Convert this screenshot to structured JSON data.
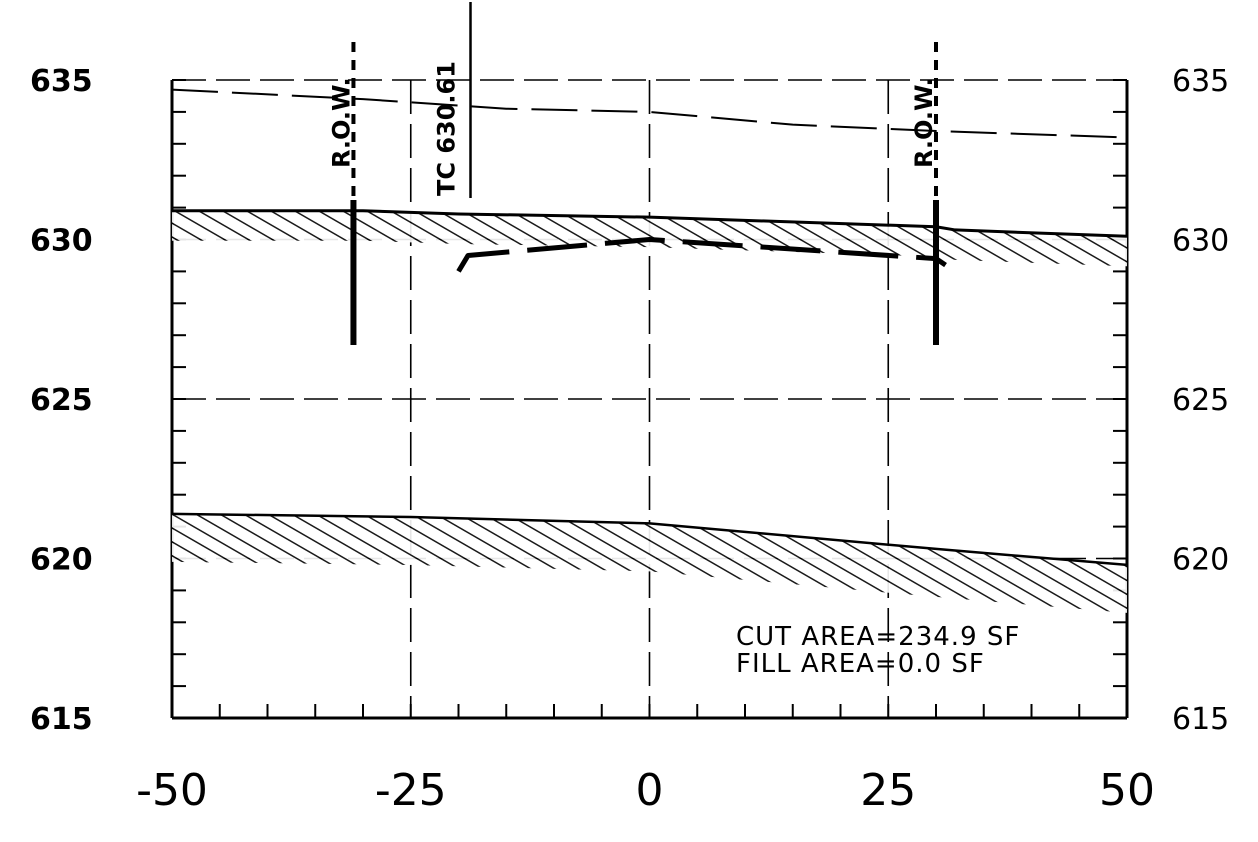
{
  "chart_data": {
    "type": "line",
    "title": "",
    "xlabel": "",
    "ylabel": "",
    "x_ticks": [
      -50,
      -25,
      0,
      25,
      50
    ],
    "y_ticks": [
      615,
      620,
      625,
      630,
      635
    ],
    "xlim": [
      -50,
      50
    ],
    "ylim": [
      615,
      635
    ],
    "grid": true,
    "series": [
      {
        "x": [
          -50,
          -30,
          -15,
          0,
          15,
          30,
          50
        ],
        "y": [
          634.7,
          634.4,
          634.1,
          634.0,
          633.6,
          633.4,
          633.2
        ]
      },
      {
        "x": [
          -50,
          -30,
          -20,
          0,
          30,
          32,
          50
        ],
        "y": [
          630.9,
          630.9,
          630.8,
          630.7,
          630.4,
          630.3,
          630.1
        ]
      },
      {
        "x": [
          -20,
          -19,
          0,
          30,
          31
        ],
        "y": [
          629.0,
          629.5,
          630.0,
          629.4,
          629.2
        ]
      },
      {
        "x": [
          -50,
          -25,
          0,
          30,
          50
        ],
        "y": [
          621.4,
          621.3,
          621.1,
          620.3,
          619.8
        ]
      }
    ],
    "markers": [
      {
        "label": "R.O.W.",
        "x": -31
      },
      {
        "label": "TC 630.61",
        "x": -20
      },
      {
        "label": "R.O.W.",
        "x": 30
      }
    ],
    "annotations": [
      "CUT AREA=234.9 SF",
      "FILL AREA=0.0 SF"
    ]
  },
  "colors": {
    "ink": "#000000",
    "paper": "#ffffff"
  }
}
